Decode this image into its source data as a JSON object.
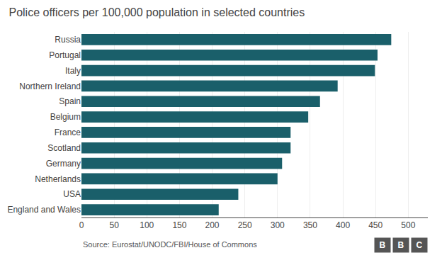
{
  "chart_data": {
    "type": "bar",
    "orientation": "horizontal",
    "title": "Police officers per 100,000 population in selected countries",
    "categories": [
      "England and Wales",
      "USA",
      "Netherlands",
      "Germany",
      "Scotland",
      "France",
      "Belgium",
      "Spain",
      "Northern Ireland",
      "Italy",
      "Portugal",
      "Russia"
    ],
    "values": [
      210,
      240,
      300,
      307,
      320,
      320,
      347,
      365,
      392,
      449,
      453,
      474
    ],
    "color": "#1a5f6a",
    "xlim": [
      0,
      530
    ],
    "xticks": [
      0,
      50,
      100,
      150,
      200,
      250,
      300,
      350,
      400,
      450,
      500
    ],
    "grid": true,
    "annotations": [
      "Source: Eurostat/UNODC/FBI/House of Commons",
      "BBC"
    ]
  }
}
